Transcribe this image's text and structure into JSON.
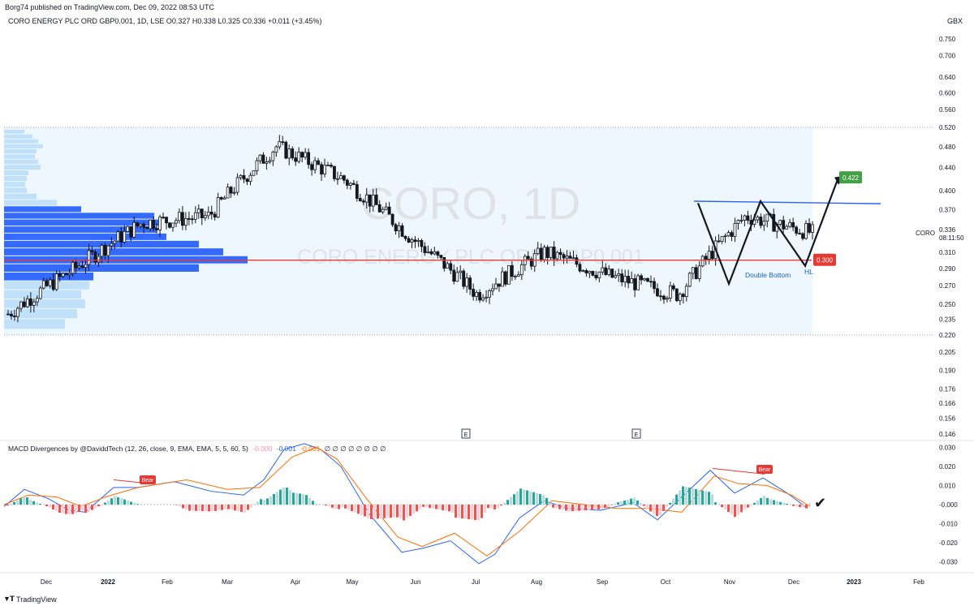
{
  "header": {
    "publisher_line": "Borg74 published on TradingView.com, Dec 09, 2022 08:53 UTC",
    "symbol_line": "CORO ENERGY PLC ORD GBP0.001, 1D, LSE  O0.327  H0.338  L0.325  C0.336  +0.011 (+3.45%)",
    "currency": "GBX"
  },
  "watermark": {
    "ticker": "CORO, 1D",
    "name": "CORO ENERGY PLC ORD GBP0.001"
  },
  "price_axis": {
    "ticks": [
      "0.750",
      "0.700",
      "0.640",
      "0.600",
      "0.560",
      "0.520",
      "0.480",
      "0.440",
      "0.400",
      "0.370",
      "0.336",
      "0.310",
      "0.290",
      "0.270",
      "0.250",
      "0.235",
      "0.220",
      "0.205",
      "0.190",
      "0.176",
      "0.166",
      "0.156",
      "0.146"
    ],
    "current_symbol": "CORO",
    "current_price": "0.336",
    "countdown": "08:11:50"
  },
  "time_axis": {
    "labels": [
      "Dec",
      "2022",
      "Feb",
      "Mar",
      "Apr",
      "May",
      "Jun",
      "Jul",
      "Aug",
      "Sep",
      "Oct",
      "Nov",
      "Dec",
      "2023",
      "Feb"
    ]
  },
  "annotations": {
    "target_label": "0.422",
    "support_label": "0.300",
    "double_bottom": "Double Bottom",
    "hl": "HL",
    "earnings_marker": "E",
    "checkmark": "✔",
    "colors": {
      "support_line": "#e53935",
      "resistance_line": "#2962ff",
      "target_bg": "#43a047",
      "support_bg": "#e53935",
      "volume_profile": "#2962ff",
      "volume_profile_light": "#bbdefb",
      "range_bg": "#e3f2fd"
    }
  },
  "indicator": {
    "name": "MACD Divergences by @DaviddTech (12, 26, close, 9, EMA, EMA, 5, 5, 60, 5)",
    "val1": "-0.000",
    "val2": "-0.001",
    "val3": "-0.001",
    "tail": "∅ ∅ ∅ ∅ ∅ ∅ ∅ ∅",
    "bear_label": "Bear",
    "ticks": [
      "0.030",
      "0.020",
      "0.010",
      "-0.000",
      "-0.010",
      "-0.020",
      "-0.030"
    ]
  },
  "footer": {
    "brand": "TradingView"
  },
  "chart_data": {
    "type": "candlestick",
    "symbol": "CORO",
    "y_axis_scale": "log",
    "ylim": [
      0.14,
      0.78
    ],
    "x_labels": [
      "Dec",
      "2022",
      "Feb",
      "Mar",
      "Apr",
      "May",
      "Jun",
      "Jul",
      "Aug",
      "Sep",
      "Oct",
      "Nov",
      "Dec",
      "2023",
      "Feb"
    ],
    "swing_path": [
      {
        "x": "Dec 2021",
        "close": 0.24
      },
      {
        "x": "Jan 2022",
        "close": 0.29
      },
      {
        "x": "Feb 2022",
        "close": 0.35
      },
      {
        "x": "Mar 2022",
        "close": 0.36
      },
      {
        "x": "Apr 2022",
        "close": 0.48
      },
      {
        "x": "May 2022",
        "close": 0.42
      },
      {
        "x": "Jun 2022",
        "close": 0.33
      },
      {
        "x": "Jul 2022",
        "close": 0.26
      },
      {
        "x": "Aug 2022",
        "close": 0.31
      },
      {
        "x": "Sep 2022",
        "close": 0.28
      },
      {
        "x": "Oct 2022",
        "close": 0.26
      },
      {
        "x": "Nov 2022",
        "close": 0.36
      },
      {
        "x": "Dec 2022",
        "close": 0.336
      }
    ],
    "levels": {
      "support": 0.3,
      "resistance": 0.38,
      "target": 0.422,
      "range_high": 0.52,
      "range_low": 0.22
    },
    "macd_ylim": [
      -0.033,
      0.033
    ]
  }
}
